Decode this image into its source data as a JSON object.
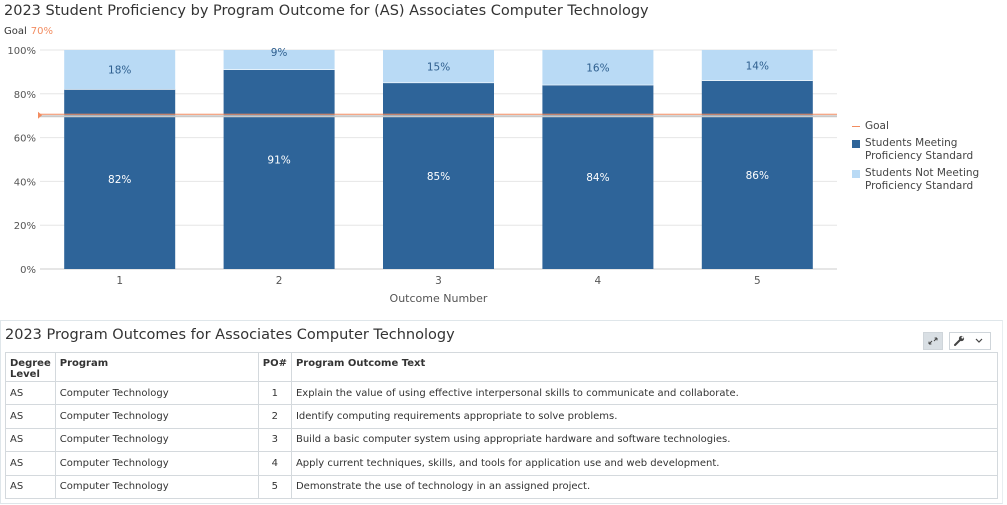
{
  "chart_data": {
    "type": "bar",
    "stacked": true,
    "title": "2023 Student Proficiency by Program Outcome for (AS) Associates Computer Technology",
    "goal": {
      "label": "Goal",
      "value_label": "70%",
      "value": 70,
      "color": "#f28c60"
    },
    "xlabel": "Outcome Number",
    "ylabel": "",
    "categories": [
      "1",
      "2",
      "3",
      "4",
      "5"
    ],
    "series": [
      {
        "name": "Students Meeting Proficiency Standard",
        "values": [
          82,
          91,
          85,
          84,
          86
        ],
        "labels": [
          "82%",
          "91%",
          "85%",
          "84%",
          "86%"
        ],
        "color": "#2e6499"
      },
      {
        "name": "Students Not Meeting Proficiency Standard",
        "values": [
          18,
          9,
          15,
          16,
          14
        ],
        "labels": [
          "18%",
          "9%",
          "15%",
          "16%",
          "14%"
        ],
        "color": "#b9daf5"
      }
    ],
    "ylim": [
      0,
      100
    ],
    "yticks": [
      "0%",
      "20%",
      "40%",
      "60%",
      "80%",
      "100%"
    ],
    "grid": true,
    "legend": "right",
    "legend_entries": [
      {
        "label": "Goal",
        "color": "#f28c60",
        "marker": "line"
      },
      {
        "label": "Students Meeting Proficiency Standard",
        "color": "#2e6499",
        "marker": "square"
      },
      {
        "label": "Students Not Meeting Proficiency Standard",
        "color": "#b9daf5",
        "marker": "square"
      }
    ]
  },
  "table_panel": {
    "title": "2023 Program Outcomes for Associates Computer Technology",
    "expand_icon": "expand-icon",
    "tools_icon": "wrench-icon",
    "headers": [
      "Degree Level",
      "Program",
      "PO#",
      "Program Outcome Text"
    ],
    "rows": [
      {
        "level": "AS",
        "program": "Computer Technology",
        "po": "1",
        "text": "Explain the value of using effective interpersonal skills to communicate and collaborate."
      },
      {
        "level": "AS",
        "program": "Computer Technology",
        "po": "2",
        "text": "Identify computing requirements appropriate to solve problems."
      },
      {
        "level": "AS",
        "program": "Computer Technology",
        "po": "3",
        "text": "Build a basic computer system using appropriate hardware and software technologies."
      },
      {
        "level": "AS",
        "program": "Computer Technology",
        "po": "4",
        "text": "Apply current techniques, skills, and tools for application use and web development."
      },
      {
        "level": "AS",
        "program": "Computer Technology",
        "po": "5",
        "text": "Demonstrate the use of technology in an assigned project."
      }
    ]
  }
}
